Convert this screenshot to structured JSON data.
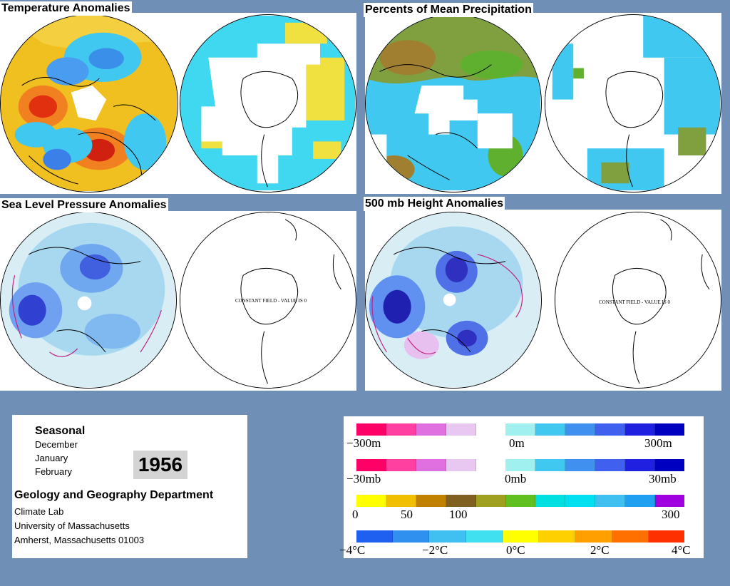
{
  "panels": {
    "temperature": {
      "title": "Temperature Anomalies"
    },
    "precipitation": {
      "title": "Percents of Mean Precipitation"
    },
    "slp": {
      "title": "Sea Level Pressure Anomalies",
      "constant_field": "CONSTANT FIELD - VALUE IS 0"
    },
    "height500": {
      "title": "500 mb Height Anomalies",
      "constant_field": "CONSTANT FIELD - VALUE IS 0"
    }
  },
  "info": {
    "season_label": "Seasonal",
    "months": [
      "December",
      "January",
      "February"
    ],
    "year": "1956",
    "department": "Geology and Geography Department",
    "lab": "Climate Lab",
    "university": "University of Massachusetts",
    "address": "Amherst, Massachusetts 01003"
  },
  "legend": {
    "height": {
      "labels": [
        "−300m",
        "0m",
        "300m"
      ],
      "colors": [
        "#ff0066",
        "#ff40a0",
        "#e070e0",
        "#e8c8f0",
        "#ffffff",
        "#a0f0f0",
        "#40c8f0",
        "#4090f0",
        "#4060f0",
        "#2020e0",
        "#0000c0"
      ]
    },
    "pressure": {
      "labels": [
        "−30mb",
        "0mb",
        "30mb"
      ],
      "colors": [
        "#ff0066",
        "#ff40a0",
        "#e070e0",
        "#e8c8f0",
        "#ffffff",
        "#a0f0f0",
        "#40c8f0",
        "#4090f0",
        "#4060f0",
        "#2020e0",
        "#0000c0"
      ]
    },
    "precip": {
      "labels": [
        "0",
        "50",
        "100",
        "300"
      ],
      "colors": [
        "#ffff00",
        "#f0c000",
        "#c08000",
        "#806020",
        "#a0a020",
        "#60c020",
        "#00e0e0",
        "#00e0f0",
        "#40c0f0",
        "#20a0f0",
        "#a000e0"
      ]
    },
    "temp": {
      "labels": [
        "−4°C",
        "−2°C",
        "0°C",
        "2°C",
        "4°C"
      ],
      "colors": [
        "#2060f0",
        "#3090f0",
        "#40c0f0",
        "#40e0f0",
        "#ffff00",
        "#ffd000",
        "#ffa000",
        "#ff7000",
        "#ff3000"
      ]
    }
  }
}
